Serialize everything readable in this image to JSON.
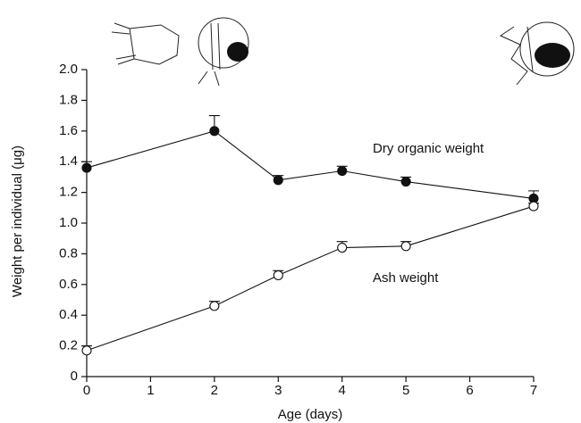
{
  "chart_data": {
    "type": "line",
    "x_label": "Age (days)",
    "y_label": "Weight per individual (μg)",
    "x": [
      0,
      2,
      3,
      4,
      5,
      7
    ],
    "series": [
      {
        "name": "Dry organic weight",
        "color": "#111111",
        "marker": "filled",
        "values": [
          1.36,
          1.6,
          1.28,
          1.34,
          1.27,
          1.16
        ],
        "errors": [
          0.04,
          0.1,
          0.03,
          0.03,
          0.03,
          0.05
        ]
      },
      {
        "name": "Ash weight",
        "color": "#111111",
        "marker": "open",
        "values": [
          0.17,
          0.46,
          0.66,
          0.84,
          0.85,
          1.11
        ],
        "errors": [
          0.03,
          0.03,
          0.03,
          0.04,
          0.03,
          0.02
        ]
      }
    ],
    "xlim": [
      0,
      7
    ],
    "xticks": [
      0,
      1,
      2,
      3,
      4,
      5,
      6,
      7
    ],
    "ylim": [
      0,
      2
    ],
    "yticks": [
      0,
      {
        "value": 0.2,
        "label": "0.2"
      },
      {
        "value": 0.4,
        "label": "0.4"
      },
      {
        "value": 0.6,
        "label": "0.6"
      },
      {
        "value": 0.8,
        "label": "0.8"
      },
      {
        "value": 1,
        "label": "1.0"
      },
      {
        "value": 1.2,
        "label": "1.2"
      },
      {
        "value": 1.4,
        "label": "1.4"
      },
      {
        "value": 1.6,
        "label": "1.6"
      },
      {
        "value": 1.8,
        "label": "1.8"
      },
      {
        "value": 2,
        "label": "2.0"
      }
    ],
    "grid": false
  }
}
